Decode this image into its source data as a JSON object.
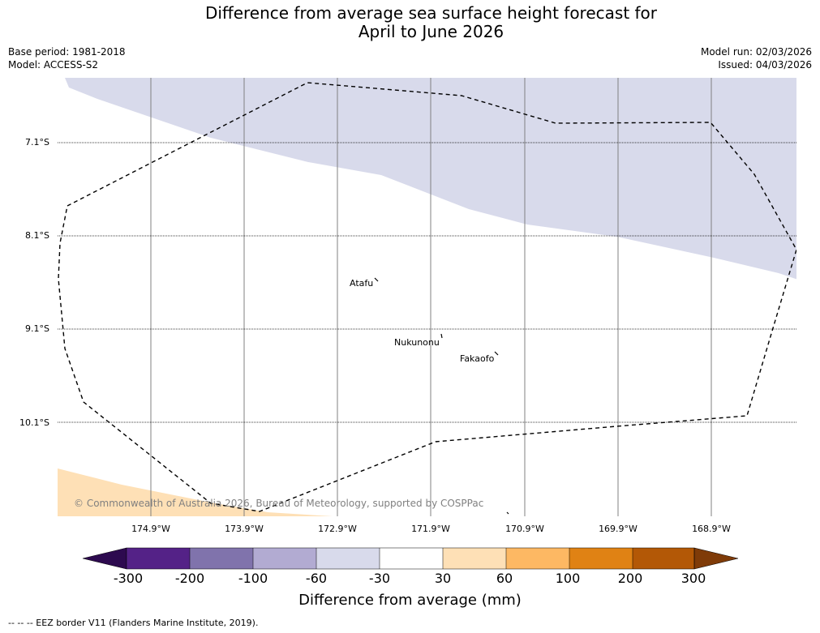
{
  "title_line1": "Difference from average sea surface height forecast for",
  "title_line2": "April to June 2026",
  "base_period": "Base period: 1981-2018",
  "model": "Model: ACCESS-S2",
  "model_run": "Model run: 02/03/2026",
  "issued": "Issued: 04/03/2026",
  "latitudes": [
    "7.1°S",
    "8.1°S",
    "9.1°S",
    "10.1°S"
  ],
  "longitudes": [
    "174.9°W",
    "173.9°W",
    "172.9°W",
    "171.9°W",
    "170.9°W",
    "169.9°W",
    "168.9°W"
  ],
  "places": {
    "atafu": "Atafu",
    "nukunonu": "Nukunonu",
    "fakaofo": "Fakaofo"
  },
  "copyright": "© Commonwealth of Australia 2026, Bureau of Meteorology, supported by COSPPac",
  "colorbar": {
    "ticks": [
      "-300",
      "-200",
      "-100",
      "-60",
      "-30",
      "30",
      "60",
      "100",
      "200",
      "300"
    ],
    "colors": [
      "#2d0a4f",
      "#542287",
      "#8073ac",
      "#b2abd2",
      "#d8daeb",
      "#ffffff",
      "#fee0b6",
      "#fdb863",
      "#e08214",
      "#b35806",
      "#7f3b08"
    ],
    "label": "Difference from average (mm)"
  },
  "footnote": "-- -- -- EEZ border V11 (Flanders Marine Institute, 2019)."
}
